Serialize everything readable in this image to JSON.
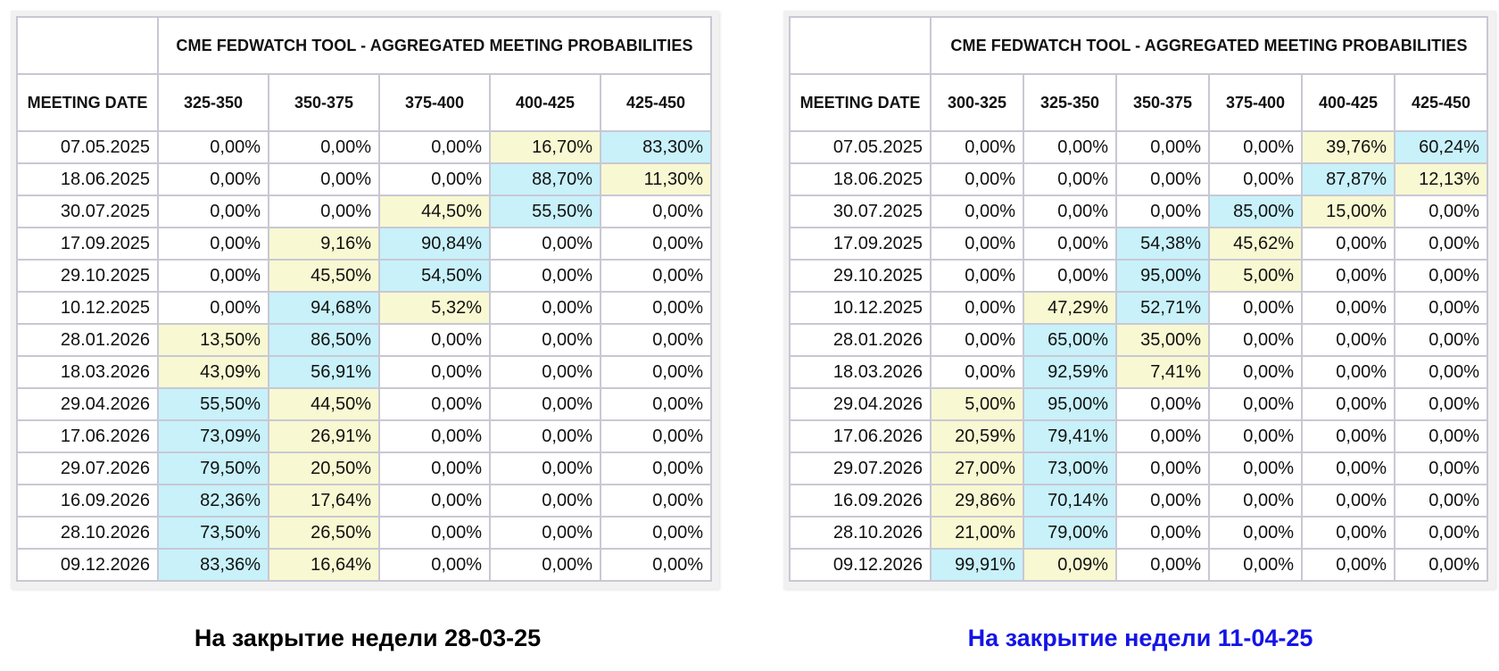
{
  "left": {
    "table_title": "CME FEDWATCH TOOL - AGGREGATED MEETING PROBABILITIES",
    "date_header": "MEETING DATE",
    "caption": "На закрытие недели 28-03-25",
    "caption_color": "#000000"
  },
  "right": {
    "table_title": "CME FEDWATCH TOOL - AGGREGATED MEETING PROBABILITIES",
    "date_header": "MEETING DATE",
    "caption": "На закрытие недели 11-04-25",
    "caption_color": "#1414e6"
  },
  "highlight_colors": {
    "max": "#c8f1fa",
    "second": "#f8f8d2"
  },
  "chart_data": [
    {
      "type": "table",
      "title": "CME FEDWATCH TOOL - AGGREGATED MEETING PROBABILITIES",
      "row_header": "MEETING DATE",
      "columns": [
        "325-350",
        "350-375",
        "375-400",
        "400-425",
        "425-450"
      ],
      "rows": [
        {
          "date": "07.05.2025",
          "values": [
            "0,00%",
            "0,00%",
            "0,00%",
            "16,70%",
            "83,30%"
          ],
          "hl": [
            "",
            "",
            "",
            "y",
            "b"
          ]
        },
        {
          "date": "18.06.2025",
          "values": [
            "0,00%",
            "0,00%",
            "0,00%",
            "88,70%",
            "11,30%"
          ],
          "hl": [
            "",
            "",
            "",
            "b",
            "y"
          ]
        },
        {
          "date": "30.07.2025",
          "values": [
            "0,00%",
            "0,00%",
            "44,50%",
            "55,50%",
            "0,00%"
          ],
          "hl": [
            "",
            "",
            "y",
            "b",
            ""
          ]
        },
        {
          "date": "17.09.2025",
          "values": [
            "0,00%",
            "9,16%",
            "90,84%",
            "0,00%",
            "0,00%"
          ],
          "hl": [
            "",
            "y",
            "b",
            "",
            ""
          ]
        },
        {
          "date": "29.10.2025",
          "values": [
            "0,00%",
            "45,50%",
            "54,50%",
            "0,00%",
            "0,00%"
          ],
          "hl": [
            "",
            "y",
            "b",
            "",
            ""
          ]
        },
        {
          "date": "10.12.2025",
          "values": [
            "0,00%",
            "94,68%",
            "5,32%",
            "0,00%",
            "0,00%"
          ],
          "hl": [
            "",
            "b",
            "y",
            "",
            ""
          ]
        },
        {
          "date": "28.01.2026",
          "values": [
            "13,50%",
            "86,50%",
            "0,00%",
            "0,00%",
            "0,00%"
          ],
          "hl": [
            "y",
            "b",
            "",
            "",
            ""
          ]
        },
        {
          "date": "18.03.2026",
          "values": [
            "43,09%",
            "56,91%",
            "0,00%",
            "0,00%",
            "0,00%"
          ],
          "hl": [
            "y",
            "b",
            "",
            "",
            ""
          ]
        },
        {
          "date": "29.04.2026",
          "values": [
            "55,50%",
            "44,50%",
            "0,00%",
            "0,00%",
            "0,00%"
          ],
          "hl": [
            "b",
            "y",
            "",
            "",
            ""
          ]
        },
        {
          "date": "17.06.2026",
          "values": [
            "73,09%",
            "26,91%",
            "0,00%",
            "0,00%",
            "0,00%"
          ],
          "hl": [
            "b",
            "y",
            "",
            "",
            ""
          ]
        },
        {
          "date": "29.07.2026",
          "values": [
            "79,50%",
            "20,50%",
            "0,00%",
            "0,00%",
            "0,00%"
          ],
          "hl": [
            "b",
            "y",
            "",
            "",
            ""
          ]
        },
        {
          "date": "16.09.2026",
          "values": [
            "82,36%",
            "17,64%",
            "0,00%",
            "0,00%",
            "0,00%"
          ],
          "hl": [
            "b",
            "y",
            "",
            "",
            ""
          ]
        },
        {
          "date": "28.10.2026",
          "values": [
            "73,50%",
            "26,50%",
            "0,00%",
            "0,00%",
            "0,00%"
          ],
          "hl": [
            "b",
            "y",
            "",
            "",
            ""
          ]
        },
        {
          "date": "09.12.2026",
          "values": [
            "83,36%",
            "16,64%",
            "0,00%",
            "0,00%",
            "0,00%"
          ],
          "hl": [
            "b",
            "y",
            "",
            "",
            ""
          ]
        }
      ]
    },
    {
      "type": "table",
      "title": "CME FEDWATCH TOOL - AGGREGATED MEETING PROBABILITIES",
      "row_header": "MEETING DATE",
      "columns": [
        "300-325",
        "325-350",
        "350-375",
        "375-400",
        "400-425",
        "425-450"
      ],
      "rows": [
        {
          "date": "07.05.2025",
          "values": [
            "0,00%",
            "0,00%",
            "0,00%",
            "0,00%",
            "39,76%",
            "60,24%"
          ],
          "hl": [
            "",
            "",
            "",
            "",
            "y",
            "b"
          ]
        },
        {
          "date": "18.06.2025",
          "values": [
            "0,00%",
            "0,00%",
            "0,00%",
            "0,00%",
            "87,87%",
            "12,13%"
          ],
          "hl": [
            "",
            "",
            "",
            "",
            "b",
            "y"
          ]
        },
        {
          "date": "30.07.2025",
          "values": [
            "0,00%",
            "0,00%",
            "0,00%",
            "85,00%",
            "15,00%",
            "0,00%"
          ],
          "hl": [
            "",
            "",
            "",
            "b",
            "y",
            ""
          ]
        },
        {
          "date": "17.09.2025",
          "values": [
            "0,00%",
            "0,00%",
            "54,38%",
            "45,62%",
            "0,00%",
            "0,00%"
          ],
          "hl": [
            "",
            "",
            "b",
            "y",
            "",
            ""
          ]
        },
        {
          "date": "29.10.2025",
          "values": [
            "0,00%",
            "0,00%",
            "95,00%",
            "5,00%",
            "0,00%",
            "0,00%"
          ],
          "hl": [
            "",
            "",
            "b",
            "y",
            "",
            ""
          ]
        },
        {
          "date": "10.12.2025",
          "values": [
            "0,00%",
            "47,29%",
            "52,71%",
            "0,00%",
            "0,00%",
            "0,00%"
          ],
          "hl": [
            "",
            "y",
            "b",
            "",
            "",
            ""
          ]
        },
        {
          "date": "28.01.2026",
          "values": [
            "0,00%",
            "65,00%",
            "35,00%",
            "0,00%",
            "0,00%",
            "0,00%"
          ],
          "hl": [
            "",
            "b",
            "y",
            "",
            "",
            ""
          ]
        },
        {
          "date": "18.03.2026",
          "values": [
            "0,00%",
            "92,59%",
            "7,41%",
            "0,00%",
            "0,00%",
            "0,00%"
          ],
          "hl": [
            "",
            "b",
            "y",
            "",
            "",
            ""
          ]
        },
        {
          "date": "29.04.2026",
          "values": [
            "5,00%",
            "95,00%",
            "0,00%",
            "0,00%",
            "0,00%",
            "0,00%"
          ],
          "hl": [
            "y",
            "b",
            "",
            "",
            "",
            ""
          ]
        },
        {
          "date": "17.06.2026",
          "values": [
            "20,59%",
            "79,41%",
            "0,00%",
            "0,00%",
            "0,00%",
            "0,00%"
          ],
          "hl": [
            "y",
            "b",
            "",
            "",
            "",
            ""
          ]
        },
        {
          "date": "29.07.2026",
          "values": [
            "27,00%",
            "73,00%",
            "0,00%",
            "0,00%",
            "0,00%",
            "0,00%"
          ],
          "hl": [
            "y",
            "b",
            "",
            "",
            "",
            ""
          ]
        },
        {
          "date": "16.09.2026",
          "values": [
            "29,86%",
            "70,14%",
            "0,00%",
            "0,00%",
            "0,00%",
            "0,00%"
          ],
          "hl": [
            "y",
            "b",
            "",
            "",
            "",
            ""
          ]
        },
        {
          "date": "28.10.2026",
          "values": [
            "21,00%",
            "79,00%",
            "0,00%",
            "0,00%",
            "0,00%",
            "0,00%"
          ],
          "hl": [
            "y",
            "b",
            "",
            "",
            "",
            ""
          ]
        },
        {
          "date": "09.12.2026",
          "values": [
            "99,91%",
            "0,09%",
            "0,00%",
            "0,00%",
            "0,00%",
            "0,00%"
          ],
          "hl": [
            "b",
            "y",
            "",
            "",
            "",
            ""
          ]
        }
      ]
    }
  ]
}
